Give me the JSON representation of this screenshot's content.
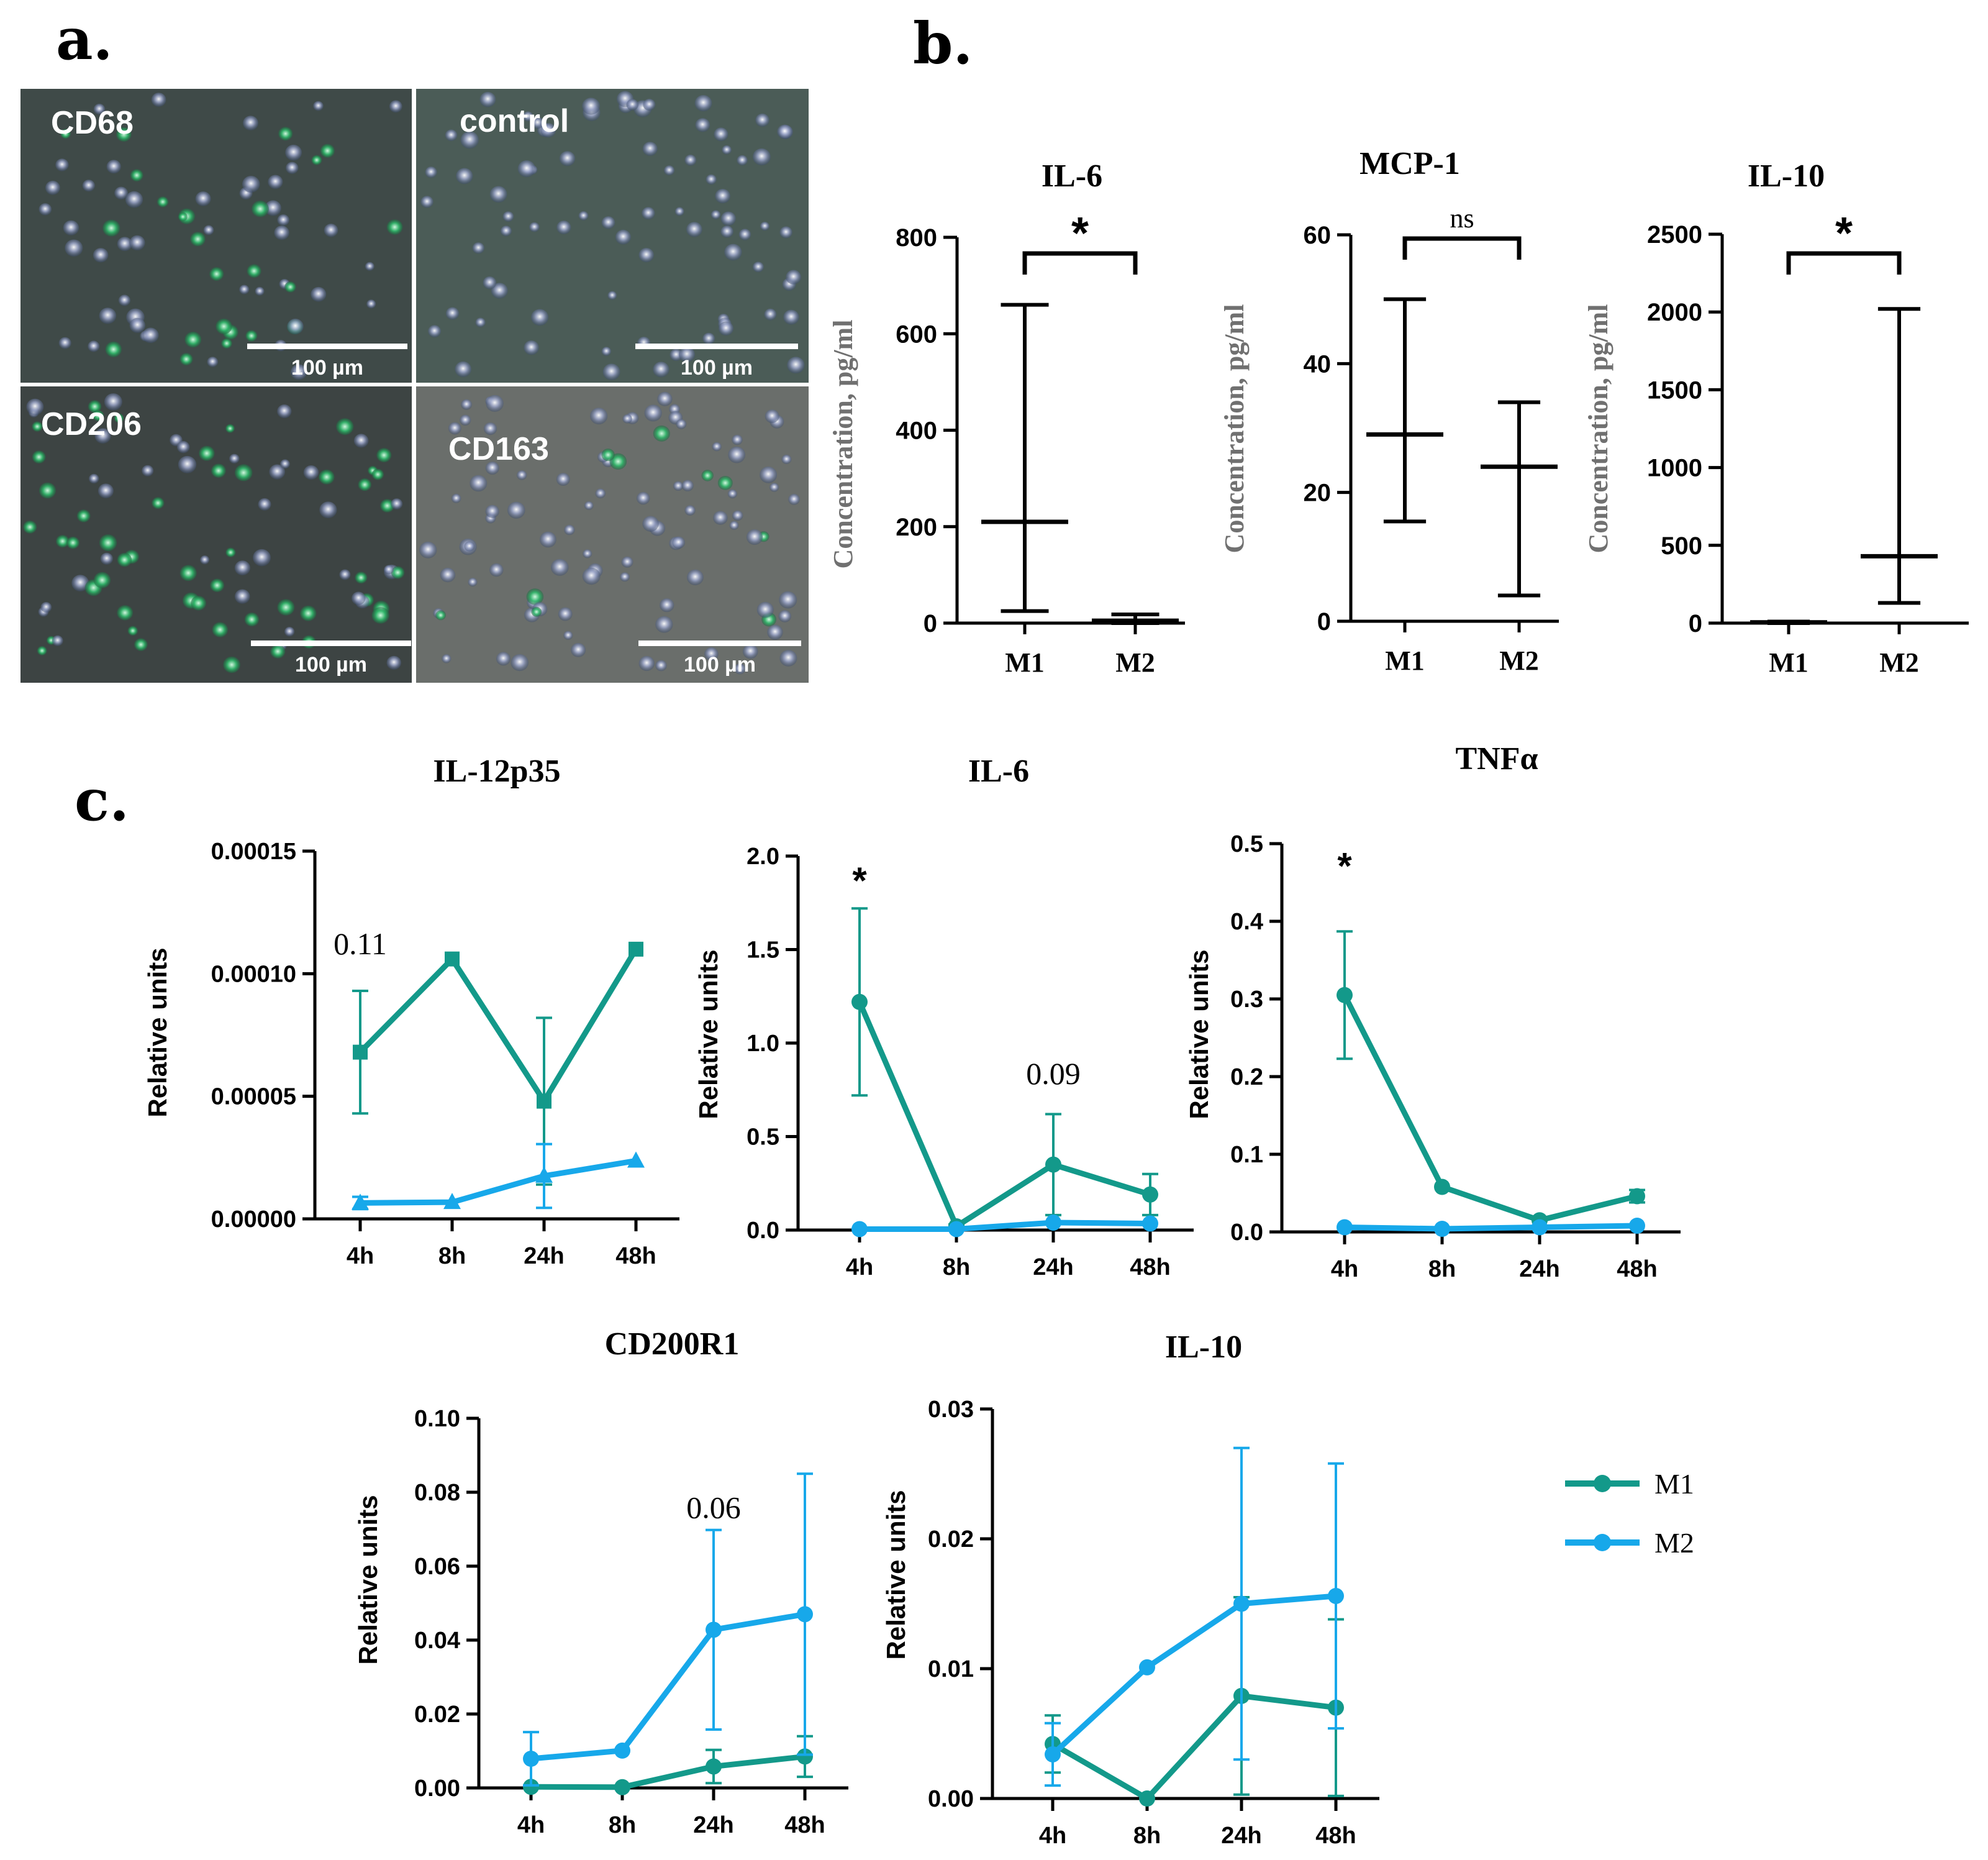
{
  "panel_labels": {
    "a": "a.",
    "b": "b.",
    "c": "c."
  },
  "colors": {
    "m1": "#13998a",
    "m2": "#17a8ea",
    "ink": "#000000",
    "axis_gray": "#707070"
  },
  "micrographs": [
    {
      "label": "CD68",
      "scale_text": "100 µm",
      "tint": "#3f4a48"
    },
    {
      "label": "control",
      "scale_text": "100 µm",
      "tint": "#4b5c57"
    },
    {
      "label": "CD206",
      "scale_text": "100 µm",
      "tint": "#3d4443"
    },
    {
      "label": "CD163",
      "scale_text": "100 µm",
      "tint": "#6a6e6b"
    }
  ],
  "legend": [
    {
      "name": "M1",
      "color": "#13998a"
    },
    {
      "name": "M2",
      "color": "#17a8ea"
    }
  ],
  "chart_data": [
    {
      "id": "b1",
      "type": "error-bar",
      "title": "IL-6",
      "ylabel": "Concentration, pg/ml",
      "ylim": [
        0,
        800
      ],
      "yticks": [
        "0",
        "200",
        "400",
        "600",
        "800"
      ],
      "categories": [
        "M1",
        "M2"
      ],
      "median": [
        210,
        5
      ],
      "low": [
        25,
        0
      ],
      "high": [
        660,
        18
      ],
      "significance": "*"
    },
    {
      "id": "b2",
      "type": "error-bar",
      "title": "MCP-1",
      "ylabel": "Concentration, pg/ml",
      "ylim": [
        0,
        60
      ],
      "yticks": [
        "0",
        "20",
        "40",
        "60"
      ],
      "categories": [
        "M1",
        "M2"
      ],
      "median": [
        29,
        24
      ],
      "low": [
        15.5,
        4
      ],
      "high": [
        50,
        34
      ],
      "significance": "ns"
    },
    {
      "id": "b3",
      "type": "error-bar",
      "title": "IL-10",
      "ylabel": "Concentration, pg/ml",
      "ylim": [
        0,
        2500
      ],
      "yticks": [
        "0",
        "500",
        "1000",
        "1500",
        "2000",
        "2500"
      ],
      "categories": [
        "M1",
        "M2"
      ],
      "median": [
        5,
        430
      ],
      "low": [
        0,
        130
      ],
      "high": [
        10,
        2020
      ],
      "significance": "*"
    },
    {
      "id": "c1",
      "type": "line",
      "title": "IL-12p35",
      "ylabel": "Relative units",
      "ylim": [
        0,
        0.00015
      ],
      "yticks": [
        "0.00000",
        "0.00005",
        "0.00010",
        "0.00015"
      ],
      "x": [
        "4h",
        "8h",
        "24h",
        "48h"
      ],
      "series": [
        {
          "name": "M1",
          "marker": "square",
          "values": [
            6.8e-05,
            0.000106,
            4.8e-05,
            0.00011
          ],
          "err": [
            2.5e-05,
            0,
            3.4e-05,
            0
          ]
        },
        {
          "name": "M2",
          "marker": "triangle",
          "values": [
            6.5e-06,
            6.8e-06,
            1.75e-05,
            2.37e-05
          ],
          "err": [
            2.5e-06,
            0,
            1.3e-05,
            0
          ]
        }
      ],
      "annotations": [
        {
          "text": "0.11",
          "x": 0,
          "y": 0.000108
        }
      ]
    },
    {
      "id": "c2",
      "type": "line",
      "title": "IL-6",
      "ylabel": "Relative units",
      "ylim": [
        0,
        2.0
      ],
      "yticks": [
        "0.0",
        "0.5",
        "1.0",
        "1.5",
        "2.0"
      ],
      "x": [
        "4h",
        "8h",
        "24h",
        "48h"
      ],
      "series": [
        {
          "name": "M1",
          "marker": "circle",
          "values": [
            1.22,
            0.02,
            0.35,
            0.19
          ],
          "err": [
            0.5,
            0.01,
            0.27,
            0.11
          ]
        },
        {
          "name": "M2",
          "marker": "circle",
          "values": [
            0.005,
            0.005,
            0.04,
            0.035
          ],
          "err": [
            0,
            0,
            0,
            0
          ]
        }
      ],
      "annotations": [
        {
          "text": "*",
          "x": 0,
          "y": 1.8
        },
        {
          "text": "0.09",
          "x": 2,
          "y": 0.78
        }
      ]
    },
    {
      "id": "c3",
      "type": "line",
      "title": "TNFα",
      "ylabel": "Relative units",
      "ylim": [
        0,
        0.5
      ],
      "yticks": [
        "0.0",
        "0.1",
        "0.2",
        "0.3",
        "0.4",
        "0.5"
      ],
      "x": [
        "4h",
        "8h",
        "24h",
        "48h"
      ],
      "series": [
        {
          "name": "M1",
          "marker": "circle",
          "values": [
            0.305,
            0.058,
            0.015,
            0.046
          ],
          "err": [
            0.082,
            0,
            0,
            0.008
          ]
        },
        {
          "name": "M2",
          "marker": "circle",
          "values": [
            0.006,
            0.004,
            0.006,
            0.008
          ],
          "err": [
            0,
            0,
            0,
            0
          ]
        }
      ],
      "annotations": [
        {
          "text": "*",
          "x": 0,
          "y": 0.455
        }
      ]
    },
    {
      "id": "c4",
      "type": "line",
      "title": "CD200R1",
      "ylabel": "Relative units",
      "ylim": [
        0,
        0.1
      ],
      "yticks": [
        "0.00",
        "0.02",
        "0.04",
        "0.06",
        "0.08",
        "0.10"
      ],
      "x": [
        "4h",
        "8h",
        "24h",
        "48h"
      ],
      "series": [
        {
          "name": "M1",
          "marker": "circle",
          "values": [
            0.0003,
            0.0002,
            0.0058,
            0.0085
          ],
          "err": [
            0,
            0,
            0.0045,
            0.0055
          ]
        },
        {
          "name": "M2",
          "marker": "circle",
          "values": [
            0.0079,
            0.0101,
            0.0428,
            0.047
          ],
          "err": [
            0.0072,
            0,
            0.027,
            0.038
          ]
        }
      ],
      "annotations": [
        {
          "text": "0.06",
          "x": 2,
          "y": 0.073
        }
      ]
    },
    {
      "id": "c5",
      "type": "line",
      "title": "IL-10",
      "ylabel": "Relative units",
      "ylim": [
        0,
        0.03
      ],
      "yticks": [
        "0.00",
        "0.01",
        "0.02",
        "0.03"
      ],
      "x": [
        "4h",
        "8h",
        "24h",
        "48h"
      ],
      "series": [
        {
          "name": "M1",
          "marker": "circle",
          "values": [
            0.0042,
            0.0,
            0.0079,
            0.007
          ],
          "err": [
            0.0022,
            0,
            0.0076,
            0.0068
          ]
        },
        {
          "name": "M2",
          "marker": "circle",
          "values": [
            0.0034,
            0.0101,
            0.015,
            0.0156
          ],
          "err": [
            0.0024,
            0,
            0.012,
            0.0102
          ]
        }
      ],
      "annotations": []
    }
  ]
}
